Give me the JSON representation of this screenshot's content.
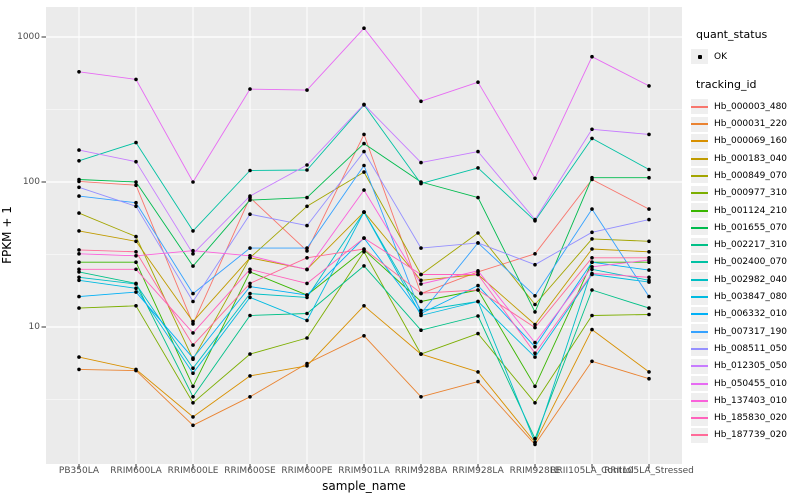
{
  "chart_data": {
    "type": "line",
    "title": "",
    "xlabel": "sample_name",
    "ylabel": "FPKM + 1",
    "y_scale": "log10",
    "yticks": [
      10,
      100,
      1000
    ],
    "ylim": [
      1.14,
      1600
    ],
    "grid": "white major+minor horizontal, white vertical per category, on gray panel",
    "legend_position": "right",
    "point_marker": "black dot on every vertex",
    "categories": [
      "PB350LA",
      "RRIM600LA",
      "RRIM600LE",
      "RRIM600SE",
      "RRIM600PE",
      "RRIM901LA",
      "RRIM928BA",
      "RRIM928LA",
      "RRIM928LE",
      "RRII105LA_Control",
      "RRII105LA_Stressed"
    ],
    "series": [
      {
        "name": "Hb_000003_480",
        "color": "#F8766D",
        "values": [
          101,
          95,
          10.5,
          78,
          33.5,
          213,
          17,
          24,
          32,
          104,
          65
        ]
      },
      {
        "name": "Hb_000031_220",
        "color": "#EA8331",
        "values": [
          5.1,
          5.0,
          2.1,
          3.3,
          5.6,
          8.7,
          3.3,
          4.2,
          1.55,
          5.8,
          4.4
        ]
      },
      {
        "name": "Hb_000069_160",
        "color": "#D89000",
        "values": [
          6.2,
          5.1,
          2.4,
          4.6,
          5.4,
          14,
          6.5,
          4.9,
          1.6,
          9.6,
          4.9
        ]
      },
      {
        "name": "Hb_000183_040",
        "color": "#C09B00",
        "values": [
          46,
          39,
          10.9,
          30,
          25,
          62,
          21,
          23,
          10.4,
          34.5,
          33
        ]
      },
      {
        "name": "Hb_000849_070",
        "color": "#A3A500",
        "values": [
          61,
          42,
          6.0,
          30,
          68,
          117,
          23,
          44.5,
          14.3,
          40.5,
          39
        ]
      },
      {
        "name": "Hb_000977_310",
        "color": "#7CAE00",
        "values": [
          13.5,
          14,
          3.0,
          6.5,
          8.4,
          33,
          6.5,
          9.0,
          3.0,
          12,
          12.2
        ]
      },
      {
        "name": "Hb_001124_210",
        "color": "#39B600",
        "values": [
          28,
          28,
          3.9,
          24,
          16.6,
          34,
          15,
          18,
          3.9,
          28,
          28
        ]
      },
      {
        "name": "Hb_001655_070",
        "color": "#00BB4E",
        "values": [
          104,
          100,
          26.3,
          75,
          78,
          184,
          100,
          78,
          12.7,
          107,
          107
        ]
      },
      {
        "name": "Hb_002217_310",
        "color": "#00C087",
        "values": [
          24,
          20,
          3.3,
          12,
          12.4,
          26.4,
          9.5,
          11.9,
          1.7,
          18,
          13.5
        ]
      },
      {
        "name": "Hb_002400_070",
        "color": "#00C1A3",
        "values": [
          140,
          187,
          46,
          120,
          121,
          340,
          97.5,
          125,
          54,
          200,
          122
        ]
      },
      {
        "name": "Hb_002982_040",
        "color": "#00BFC4",
        "values": [
          22,
          19.8,
          5.2,
          17,
          16,
          62,
          13,
          15,
          1.6,
          25,
          21
        ]
      },
      {
        "name": "Hb_003847_080",
        "color": "#00BAE0",
        "values": [
          21,
          18.5,
          4.8,
          16,
          11.1,
          62,
          12,
          15,
          6.2,
          23,
          20.4
        ]
      },
      {
        "name": "Hb_006332_010",
        "color": "#00B0F6",
        "values": [
          16.2,
          17.4,
          6.1,
          19,
          16.6,
          41,
          12.4,
          19.3,
          7.3,
          28,
          24.7
        ]
      },
      {
        "name": "Hb_007317_190",
        "color": "#35A2FF",
        "values": [
          80,
          72,
          17,
          35,
          35,
          130,
          12.4,
          38,
          16.4,
          65,
          16.2
        ]
      },
      {
        "name": "Hb_008511_050",
        "color": "#9590FF",
        "values": [
          92,
          68,
          15,
          60,
          50,
          162,
          35,
          38,
          26.9,
          45,
          55
        ]
      },
      {
        "name": "Hb_012305_050",
        "color": "#C77CFF",
        "values": [
          166,
          138,
          32,
          80,
          131,
          343,
          136,
          162,
          55,
          231,
          213
        ]
      },
      {
        "name": "Hb_050455_010",
        "color": "#E76BF3",
        "values": [
          575,
          510,
          100,
          437,
          430,
          1150,
          360,
          488,
          106,
          731,
          460
        ]
      },
      {
        "name": "Hb_137403_010",
        "color": "#FA62DB",
        "values": [
          32,
          31,
          33.6,
          31,
          24.9,
          88,
          19.8,
          24.4,
          7.8,
          26,
          29
        ]
      },
      {
        "name": "Hb_185830_020",
        "color": "#FF62BC",
        "values": [
          25,
          25,
          9.1,
          25,
          20,
          41,
          23,
          23,
          6.6,
          23.4,
          22
        ]
      },
      {
        "name": "Hb_187739_020",
        "color": "#FF6A98",
        "values": [
          34,
          33,
          7.5,
          20,
          30,
          34.5,
          17.1,
          18,
          9.9,
          30,
          30
        ]
      }
    ]
  },
  "legend": {
    "quant_status_title": "quant_status",
    "ok_label": "OK",
    "tracking_id_title": "tracking_id"
  },
  "panel": {
    "bg": "#EBEBEB",
    "grid_color": "#FFFFFF",
    "point_color": "#000000",
    "tick_color": "#333333",
    "tick_label_color": "#4D4D4D"
  }
}
